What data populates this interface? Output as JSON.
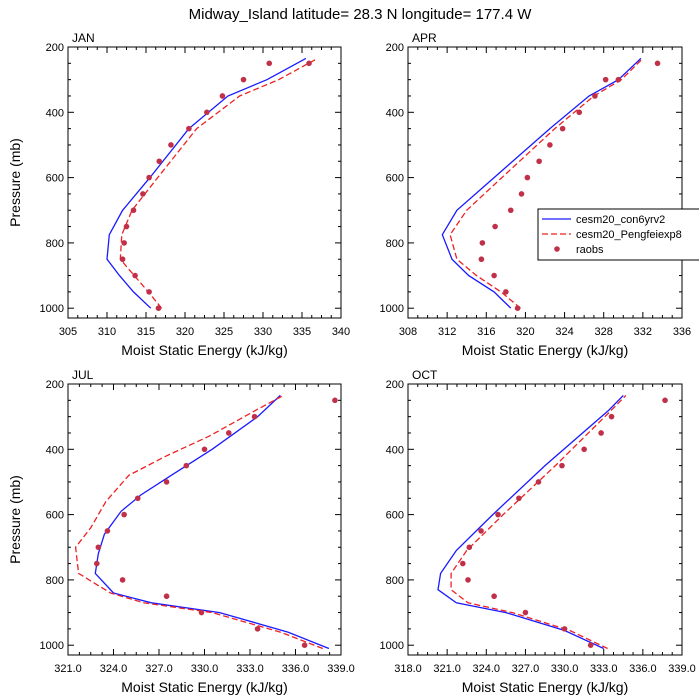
{
  "title": "Midway_Island  latitude= 28.3 N longitude= 177.4 W",
  "colors": {
    "model1": "#1a1aff",
    "model2": "#ee2222",
    "obs": "#c03048"
  },
  "legend": {
    "placement": "right of APR panel",
    "entries": [
      {
        "label": "cesm20_con6yrv2",
        "style": "solid-line",
        "color": "#1a1aff"
      },
      {
        "label": "cesm20_Pengfeiexp8",
        "style": "dashed-line",
        "color": "#ee2222"
      },
      {
        "label": "raobs",
        "style": "dot",
        "color": "#c03048"
      }
    ]
  },
  "chart_data": [
    {
      "type": "line",
      "title": "JAN",
      "xlabel": "Moist Static Energy (kJ/kg)",
      "ylabel": "Pressure (mb)",
      "xlim": [
        305,
        340
      ],
      "ylim": [
        1030,
        200
      ],
      "y_inverted": true,
      "xticks": [
        "305",
        "310",
        "315",
        "320",
        "325",
        "330",
        "335",
        "340"
      ],
      "yticks": [
        "200",
        "400",
        "600",
        "800",
        "1000"
      ],
      "series": [
        {
          "name": "cesm20_con6yrv2",
          "style": "solid",
          "x": [
            315.6,
            313.4,
            311.6,
            310.0,
            310.3,
            312.0,
            315.5,
            320.5,
            325.5,
            330.5,
            335.5
          ],
          "y": [
            1000,
            950,
            900,
            850,
            775,
            700,
            600,
            450,
            350,
            300,
            235
          ]
        },
        {
          "name": "cesm20_Pengfeiexp8",
          "style": "dashed",
          "x": [
            317.0,
            315.3,
            313.5,
            311.7,
            311.9,
            313.2,
            316.5,
            321.5,
            327.0,
            332.0,
            337.0
          ],
          "y": [
            1000,
            950,
            900,
            850,
            775,
            700,
            600,
            450,
            350,
            300,
            235
          ]
        },
        {
          "name": "raobs",
          "style": "points",
          "x": [
            316.6,
            315.4,
            313.6,
            312.0,
            312.2,
            312.5,
            313.4,
            314.6,
            315.4,
            316.7,
            318.2,
            320.5,
            322.8,
            324.8,
            327.5,
            330.8,
            335.9
          ],
          "y": [
            1000,
            950,
            900,
            850,
            800,
            750,
            700,
            650,
            600,
            550,
            500,
            450,
            400,
            350,
            300,
            250,
            250
          ]
        }
      ]
    },
    {
      "type": "line",
      "title": "APR",
      "xlabel": "Moist Static Energy (kJ/kg)",
      "ylabel": "",
      "xlim": [
        308,
        336
      ],
      "ylim": [
        1030,
        200
      ],
      "y_inverted": true,
      "xticks": [
        "308",
        "312",
        "316",
        "320",
        "324",
        "328",
        "332",
        "336"
      ],
      "yticks": [
        "200",
        "400",
        "600",
        "800",
        "1000"
      ],
      "series": [
        {
          "name": "cesm20_con6yrv2",
          "style": "solid",
          "x": [
            318.5,
            316.8,
            314.2,
            312.5,
            311.5,
            313.0,
            316.8,
            322.5,
            326.5,
            329.5,
            331.8
          ],
          "y": [
            1000,
            950,
            900,
            850,
            775,
            700,
            600,
            450,
            350,
            300,
            235
          ]
        },
        {
          "name": "cesm20_Pengfeiexp8",
          "style": "dashed",
          "x": [
            319.5,
            317.5,
            315.0,
            313.0,
            312.3,
            314.0,
            317.6,
            323.0,
            327.0,
            329.8,
            332.0
          ],
          "y": [
            1000,
            950,
            900,
            850,
            775,
            700,
            600,
            450,
            350,
            300,
            235
          ]
        },
        {
          "name": "raobs",
          "style": "points",
          "x": [
            319.2,
            318.0,
            316.8,
            315.5,
            315.6,
            316.9,
            318.5,
            319.6,
            320.2,
            321.4,
            322.5,
            323.8,
            325.5,
            327.1,
            328.2,
            329.5,
            333.5
          ],
          "y": [
            1000,
            950,
            900,
            850,
            800,
            750,
            700,
            650,
            600,
            550,
            500,
            450,
            400,
            350,
            300,
            300,
            250
          ]
        }
      ]
    },
    {
      "type": "line",
      "title": "JUL",
      "xlabel": "Moist Static Energy (kJ/kg)",
      "ylabel": "Pressure (mb)",
      "xlim": [
        321,
        339
      ],
      "ylim": [
        1030,
        200
      ],
      "y_inverted": true,
      "xticks": [
        "321.0",
        "324.0",
        "327.0",
        "330.0",
        "333.0",
        "336.0",
        "339.0"
      ],
      "yticks": [
        "200",
        "400",
        "600",
        "800",
        "1000"
      ],
      "series": [
        {
          "name": "cesm20_con6yrv2",
          "style": "solid",
          "x": [
            338.2,
            335.5,
            331.0,
            326.5,
            324.0,
            322.8,
            323.0,
            323.4,
            324.5,
            325.8,
            327.8,
            330.5,
            333.5,
            335.0
          ],
          "y": [
            1010,
            960,
            900,
            870,
            840,
            780,
            720,
            660,
            590,
            540,
            480,
            400,
            300,
            235
          ]
        },
        {
          "name": "cesm20_Pengfeiexp8",
          "style": "dashed",
          "x": [
            337.8,
            335.0,
            330.5,
            326.0,
            323.8,
            321.7,
            321.5,
            322.5,
            323.5,
            325.0,
            327.5,
            330.3,
            333.4,
            335.2
          ],
          "y": [
            1010,
            960,
            900,
            870,
            840,
            780,
            700,
            640,
            560,
            480,
            420,
            360,
            280,
            235
          ]
        },
        {
          "name": "raobs",
          "style": "points",
          "x": [
            336.6,
            333.5,
            329.8,
            327.5,
            324.6,
            322.9,
            323.0,
            323.6,
            324.7,
            325.6,
            327.5,
            328.8,
            330.0,
            331.6,
            333.3,
            338.6
          ],
          "y": [
            1000,
            950,
            900,
            850,
            800,
            750,
            700,
            650,
            600,
            550,
            500,
            450,
            400,
            350,
            300,
            250
          ]
        }
      ]
    },
    {
      "type": "line",
      "title": "OCT",
      "xlabel": "Moist Static Energy (kJ/kg)",
      "ylabel": "",
      "xlim": [
        318,
        339
      ],
      "ylim": [
        1030,
        200
      ],
      "y_inverted": true,
      "xticks": [
        "318.0",
        "321.0",
        "324.0",
        "327.0",
        "330.0",
        "333.0",
        "336.0",
        "339.0"
      ],
      "yticks": [
        "200",
        "400",
        "600",
        "800",
        "1000"
      ],
      "series": [
        {
          "name": "cesm20_con6yrv2",
          "style": "solid",
          "x": [
            333.0,
            330.0,
            325.5,
            321.7,
            320.3,
            320.5,
            321.7,
            324.5,
            328.5,
            333.4,
            334.5
          ],
          "y": [
            1010,
            955,
            900,
            870,
            830,
            780,
            710,
            600,
            450,
            280,
            235
          ]
        },
        {
          "name": "cesm20_Pengfeiexp8",
          "style": "dashed",
          "x": [
            333.3,
            330.4,
            326.0,
            322.6,
            321.3,
            321.3,
            322.5,
            325.3,
            329.3,
            333.6,
            334.7
          ],
          "y": [
            1010,
            955,
            900,
            870,
            830,
            780,
            710,
            600,
            450,
            280,
            235
          ]
        },
        {
          "name": "raobs",
          "style": "points",
          "x": [
            332.0,
            330.0,
            327.0,
            324.6,
            322.6,
            322.2,
            322.7,
            323.6,
            324.9,
            326.5,
            328.0,
            329.8,
            331.5,
            332.8,
            333.6,
            337.7
          ],
          "y": [
            1000,
            950,
            900,
            850,
            800,
            750,
            700,
            650,
            600,
            550,
            500,
            450,
            400,
            350,
            300,
            250
          ]
        }
      ]
    }
  ]
}
